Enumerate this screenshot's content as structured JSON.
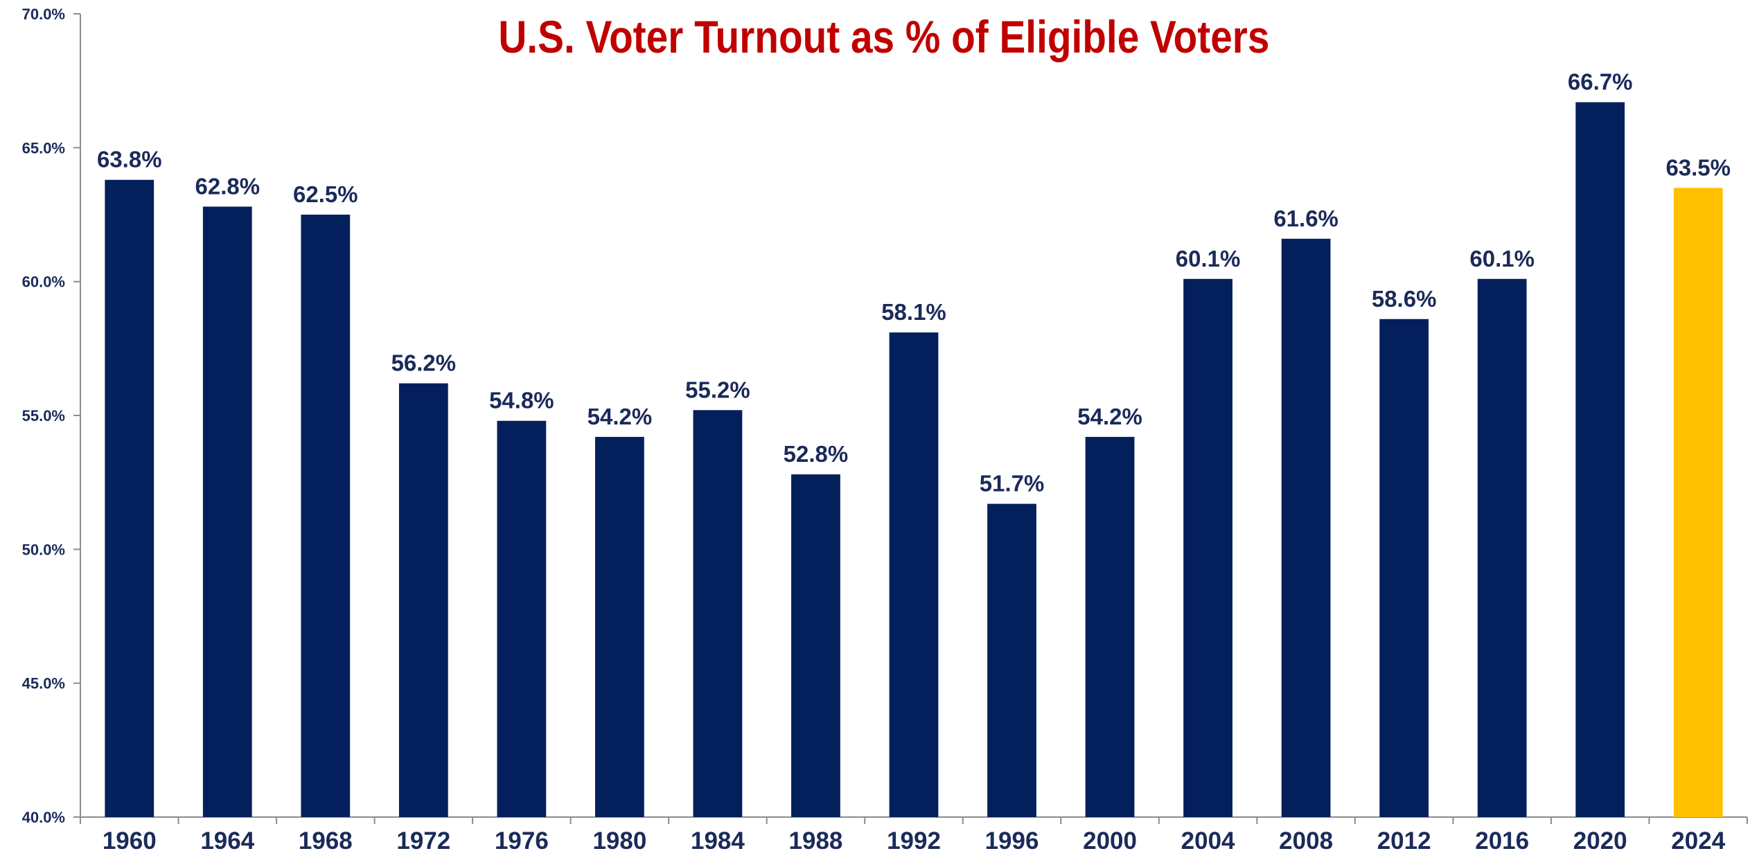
{
  "chart_data": {
    "type": "bar",
    "title": "U.S. Voter Turnout as % of Eligible Voters",
    "xlabel": "",
    "ylabel": "",
    "categories": [
      "1960",
      "1964",
      "1968",
      "1972",
      "1976",
      "1980",
      "1984",
      "1988",
      "1992",
      "1996",
      "2000",
      "2004",
      "2008",
      "2012",
      "2016",
      "2020",
      "2024"
    ],
    "values": [
      63.8,
      62.8,
      62.5,
      56.2,
      54.8,
      54.2,
      55.2,
      52.8,
      58.1,
      51.7,
      54.2,
      60.1,
      61.6,
      58.6,
      60.1,
      66.7,
      63.5
    ],
    "data_labels": [
      "63.8%",
      "62.8%",
      "62.5%",
      "56.2%",
      "54.8%",
      "54.2%",
      "55.2%",
      "52.8%",
      "58.1%",
      "51.7%",
      "54.2%",
      "60.1%",
      "61.6%",
      "58.6%",
      "60.1%",
      "66.7%",
      "63.5%"
    ],
    "ylim": [
      40,
      70
    ],
    "yticks": [
      40,
      45,
      50,
      55,
      60,
      65,
      70
    ],
    "ytick_labels": [
      "40.0%",
      "45.0%",
      "50.0%",
      "55.0%",
      "60.0%",
      "65.0%",
      "70.0%"
    ],
    "grid": false,
    "legend": "none",
    "highlight_index": 16,
    "colors": {
      "bar": "#04205c",
      "highlight": "#ffc000",
      "title": "#c00000",
      "labels": "#1a2a5a",
      "axis": "#8c8c8c"
    }
  }
}
